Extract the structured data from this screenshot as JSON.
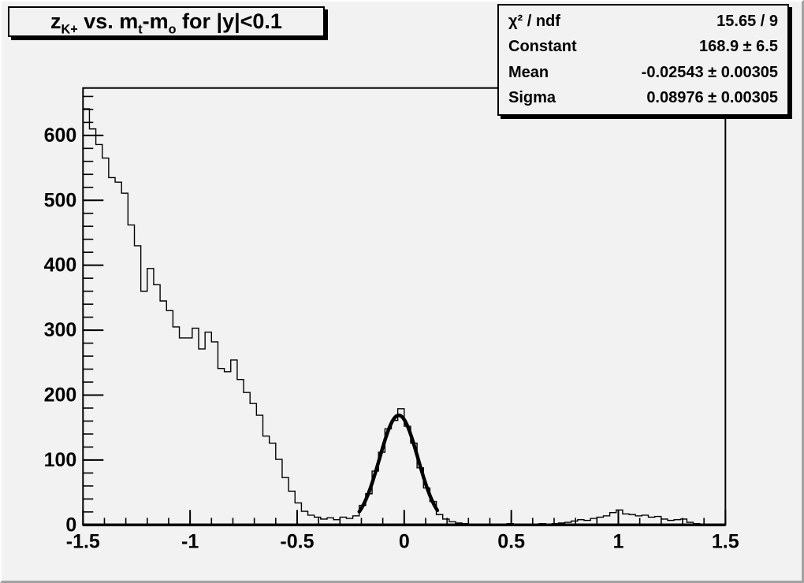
{
  "title": {
    "z": "z",
    "z_sub": "K+",
    "m1": " vs. m",
    "m1_sub": "t",
    "m2": "-m",
    "m2_sub": "o",
    "rest": " for |y|<0.1",
    "plain": "z_{K+} vs. m_{t}-m_{o} for |y|<0.1"
  },
  "stats": {
    "rows": [
      {
        "label": "χ² / ndf",
        "value": "15.65 / 9"
      },
      {
        "label": "Constant",
        "value": "168.9 ± 6.5"
      },
      {
        "label": "Mean",
        "value": "-0.02543 ± 0.00305"
      },
      {
        "label": "Sigma",
        "value": "0.08976 ± 0.00305"
      }
    ]
  },
  "chart_data": {
    "type": "bar",
    "style": "step-histogram",
    "title": "z_{K+} vs. m_t-m_o for |y|<0.1",
    "xlabel": "",
    "ylabel": "",
    "xlim": [
      -1.5,
      1.5
    ],
    "ylim": [
      0,
      673
    ],
    "bin_start": -1.5,
    "bin_width": 0.03,
    "values": [
      641,
      610,
      586,
      565,
      535,
      528,
      511,
      462,
      430,
      360,
      395,
      370,
      345,
      330,
      305,
      288,
      288,
      303,
      271,
      297,
      282,
      241,
      236,
      254,
      224,
      204,
      187,
      169,
      137,
      126,
      101,
      73,
      52,
      34,
      21,
      15,
      12,
      9,
      11,
      8,
      12,
      10,
      14,
      30,
      48,
      83,
      112,
      148,
      161,
      179,
      152,
      126,
      88,
      57,
      36,
      16,
      9,
      5,
      3,
      2,
      1,
      1,
      0,
      1,
      0,
      1,
      2,
      1,
      0,
      0,
      1,
      2,
      1,
      2,
      3,
      4,
      6,
      8,
      7,
      10,
      12,
      14,
      19,
      23,
      17,
      16,
      14,
      15,
      12,
      13,
      9,
      7,
      8,
      9,
      4,
      2,
      1,
      0,
      0,
      0
    ],
    "fit": {
      "type": "gaussian",
      "constant": 168.9,
      "mean": -0.02543,
      "sigma": 0.08976,
      "chi2": 15.65,
      "ndf": 9,
      "draw_range": [
        -0.21,
        0.155
      ]
    },
    "x_tick_values": [
      -1.5,
      -1,
      -0.5,
      0,
      0.5,
      1,
      1.5
    ],
    "x_tick_labels": [
      "-1.5",
      "-1",
      "-0.5",
      "0",
      "0.5",
      "1",
      "1.5"
    ],
    "x_minor_step": 0.1,
    "y_tick_values": [
      0,
      100,
      200,
      300,
      400,
      500,
      600
    ],
    "y_tick_labels": [
      "0",
      "100",
      "200",
      "300",
      "400",
      "500",
      "600"
    ],
    "y_minor_step": 20,
    "grid": false,
    "legend": "none",
    "colors": {
      "line": "#000000",
      "fit_curve": "#000000",
      "background": "#f2f2f2",
      "text": "#000000"
    }
  }
}
